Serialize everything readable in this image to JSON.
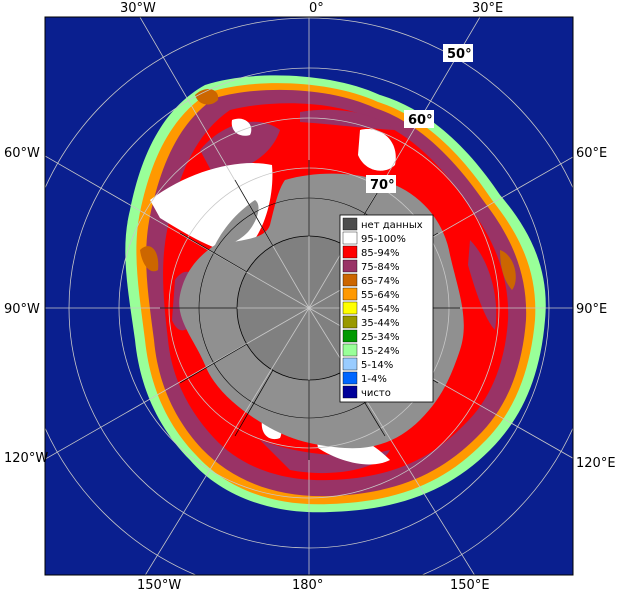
{
  "map": {
    "top_labels": [
      "30°W",
      "0°",
      "30°E"
    ],
    "bottom_labels": [
      "150°W",
      "180°",
      "150°E"
    ],
    "left_labels": [
      "60°W",
      "90°W",
      "120°W"
    ],
    "right_labels": [
      "60°E",
      "90°E",
      "120°E"
    ],
    "latitude_labels": [
      "50°",
      "60°",
      "70°"
    ]
  },
  "legend": {
    "items": [
      {
        "label": "нет данных",
        "color": "#4d4d4d"
      },
      {
        "label": "95-100%",
        "color": "#ffffff"
      },
      {
        "label": "85-94%",
        "color": "#ff0000"
      },
      {
        "label": "75-84%",
        "color": "#993366"
      },
      {
        "label": "65-74%",
        "color": "#cc6600"
      },
      {
        "label": "55-64%",
        "color": "#ff9900"
      },
      {
        "label": "45-54%",
        "color": "#ffff00"
      },
      {
        "label": "35-44%",
        "color": "#999900"
      },
      {
        "label": "25-34%",
        "color": "#009900"
      },
      {
        "label": "15-24%",
        "color": "#99ff99"
      },
      {
        "label": "5-14%",
        "color": "#99ccff"
      },
      {
        "label": "1-4%",
        "color": "#0066ff"
      },
      {
        "label": "чисто",
        "color": "#000099"
      }
    ]
  },
  "colors": {
    "ocean": "#0a1f8f",
    "land": "#909090",
    "ice_high": "#ff0000",
    "ice_mid": "#993366",
    "ice_full": "#ffffff",
    "grid": "#c8c8c8",
    "grid_inner": "#000000"
  }
}
